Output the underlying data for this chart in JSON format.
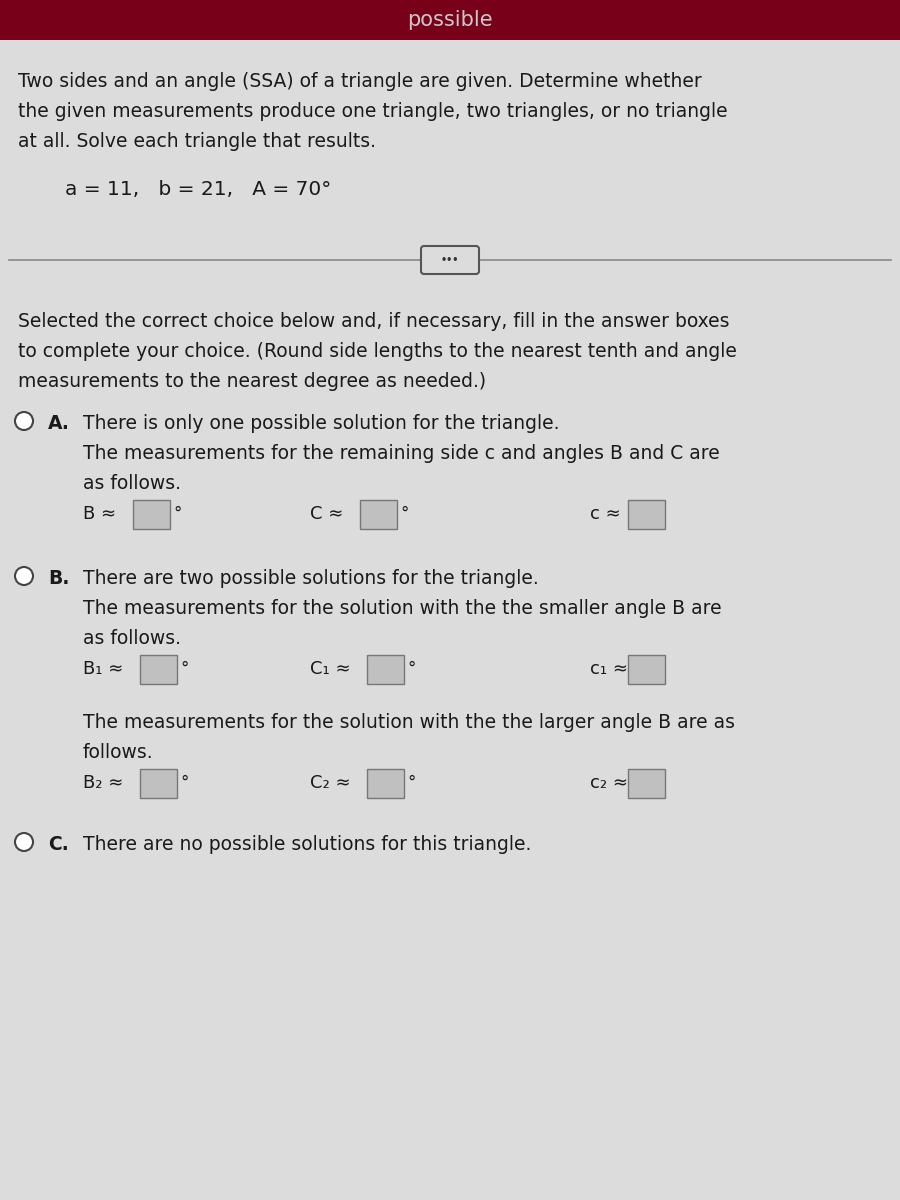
{
  "header_bg_color": "#780018",
  "header_text": "possible",
  "header_text_color": "#C8C8C8",
  "bg_color": "#C8C8C8",
  "main_bg_color": "#DCDCDC",
  "title_line1": "Two sides and an angle (SSA) of a triangle are given. Determine whether",
  "title_line2": "the given measurements produce one triangle, two triangles, or no triangle",
  "title_line3": "at all. Solve each triangle that results.",
  "given": "a = 11,   b = 21,   A = 70°",
  "instruction_line1": "Selected the correct choice below and, if necessary, fill in the answer boxes",
  "instruction_line2": "to complete your choice. (Round side lengths to the nearest tenth and angle",
  "instruction_line3": "measurements to the nearest degree as needed.)",
  "option_A_label": "A.",
  "option_A_line1": "There is only one possible solution for the triangle.",
  "option_A_line2": "The measurements for the remaining side c and angles B and C are",
  "option_A_line3": "as follows.",
  "option_A_B": "B ≈",
  "option_A_C_angle": "C ≈",
  "option_A_c_side": "c ≈",
  "option_B_label": "B.",
  "option_B_line1": "There are two possible solutions for the triangle.",
  "option_B_line2": "The measurements for the solution with the the smaller angle B are",
  "option_B_line3": "as follows.",
  "option_B1_B": "B₁ ≈",
  "option_B1_C": "C₁ ≈",
  "option_B1_c": "c₁ ≈",
  "option_B_larger_line1": "The measurements for the solution with the the larger angle B are as",
  "option_B_larger_line2": "follows.",
  "option_B2_B": "B₂ ≈",
  "option_B2_C": "C₂ ≈",
  "option_B2_c": "c₂ ≈",
  "option_C_label": "C.",
  "option_C_line1": "There are no possible solutions for this triangle.",
  "text_color": "#1A1A1A",
  "box_color": "#C0C0C0",
  "box_border_color": "#777777",
  "separator_color": "#888888",
  "dots_color": "#333333",
  "radio_edge_color": "#444444"
}
